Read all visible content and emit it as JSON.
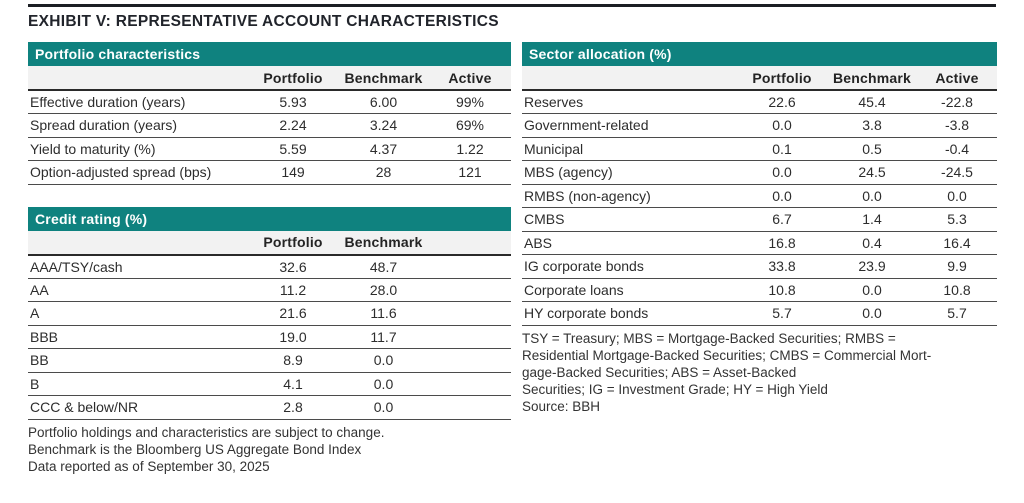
{
  "title": "EXHIBIT V: REPRESENTATIVE ACCOUNT CHARACTERISTICS",
  "colors": {
    "teal_header": "#0f827f",
    "top_rule": "#1b1e23",
    "header_band": "#f2f2f2",
    "text": "#2d2d2d"
  },
  "tables": {
    "portfolio_characteristics": {
      "title": "Portfolio characteristics",
      "columns": [
        "",
        "Portfolio",
        "Benchmark",
        "Active"
      ],
      "rows": [
        [
          "Effective duration (years)",
          "5.93",
          "6.00",
          "99%"
        ],
        [
          "Spread duration (years)",
          "2.24",
          "3.24",
          "69%"
        ],
        [
          "Yield to maturity (%)",
          "5.59",
          "4.37",
          "1.22"
        ],
        [
          "Option-adjusted spread (bps)",
          "149",
          "28",
          "121"
        ]
      ]
    },
    "credit_rating": {
      "title": "Credit rating (%)",
      "columns": [
        "",
        "Portfolio",
        "Benchmark"
      ],
      "rows": [
        [
          "AAA/TSY/cash",
          "32.6",
          "48.7"
        ],
        [
          "AA",
          "11.2",
          "28.0"
        ],
        [
          "A",
          "21.6",
          "11.6"
        ],
        [
          "BBB",
          "19.0",
          "11.7"
        ],
        [
          "BB",
          "8.9",
          "0.0"
        ],
        [
          "B",
          "4.1",
          "0.0"
        ],
        [
          "CCC & below/NR",
          "2.8",
          "0.0"
        ]
      ]
    },
    "sector_allocation": {
      "title": "Sector allocation (%)",
      "columns": [
        "",
        "Portfolio",
        "Benchmark",
        "Active"
      ],
      "rows": [
        [
          "Reserves",
          "22.6",
          "45.4",
          "-22.8"
        ],
        [
          "Government-related",
          "0.0",
          "3.8",
          "-3.8"
        ],
        [
          "Municipal",
          "0.1",
          "0.5",
          "-0.4"
        ],
        [
          "MBS (agency)",
          "0.0",
          "24.5",
          "-24.5"
        ],
        [
          "RMBS (non-agency)",
          "0.0",
          "0.0",
          "0.0"
        ],
        [
          "CMBS",
          "6.7",
          "1.4",
          "5.3"
        ],
        [
          "ABS",
          "16.8",
          "0.4",
          "16.4"
        ],
        [
          "IG corporate bonds",
          "33.8",
          "23.9",
          "9.9"
        ],
        [
          "Corporate loans",
          "10.8",
          "0.0",
          "10.8"
        ],
        [
          "HY corporate bonds",
          "5.7",
          "0.0",
          "5.7"
        ]
      ]
    }
  },
  "footnotes": {
    "left": [
      "Portfolio holdings and characteristics are subject to change.",
      "Benchmark is the Bloomberg US Aggregate Bond Index",
      "Data reported as of September 30, 2025"
    ],
    "right": [
      "TSY = Treasury; MBS = Mortgage-Backed Securities; RMBS =",
      "Residential Mortgage-Backed Securities; CMBS = Commercial Mort-",
      "gage-Backed Securities; ABS = Asset-Backed",
      "Securities; IG = Investment Grade; HY = High Yield",
      "Source: BBH"
    ]
  }
}
